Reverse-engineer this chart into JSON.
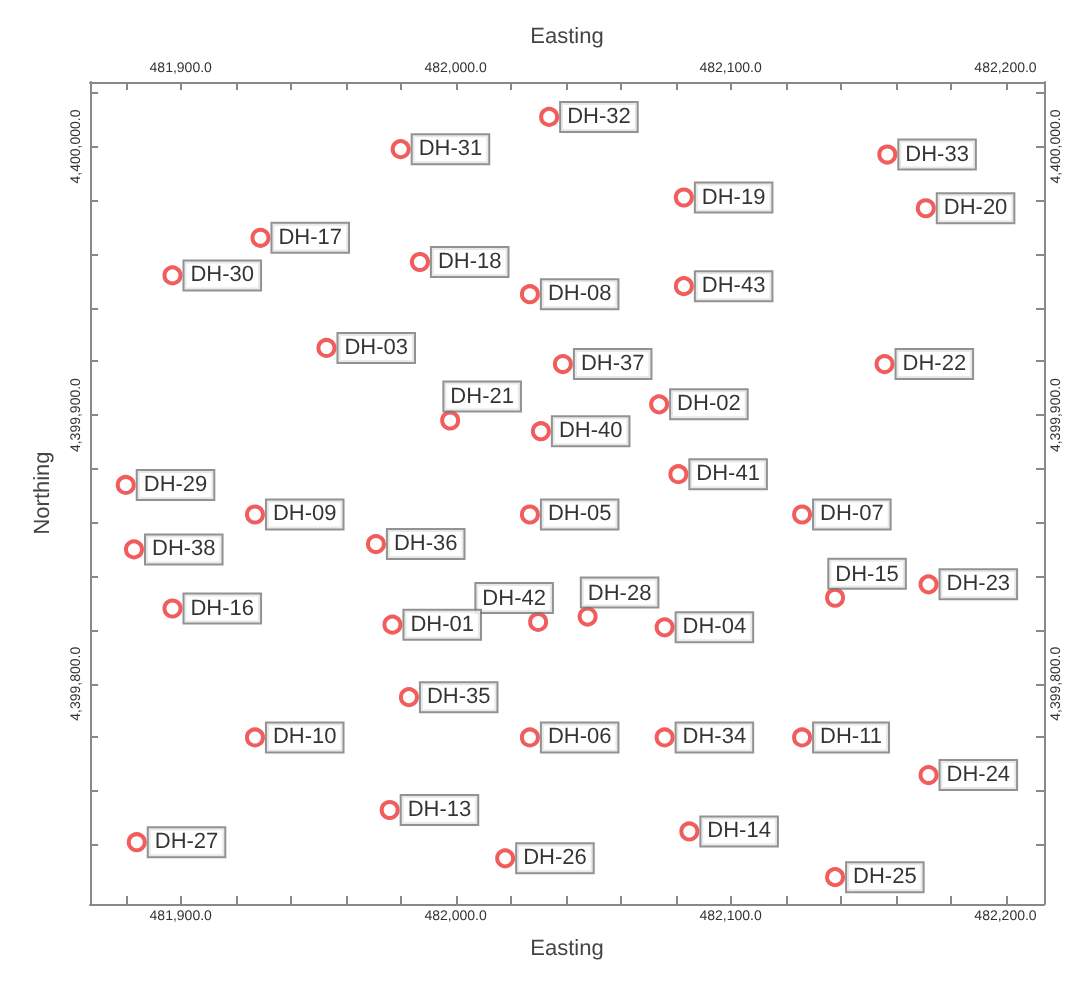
{
  "chart_data": {
    "type": "scatter",
    "xlabel": "Easting",
    "x2label": "Easting",
    "ylabel": "Northing",
    "marker": "circle",
    "x": [
      482034,
      481980,
      482157,
      482083,
      482171,
      481929,
      481897,
      481987,
      482027,
      482083,
      481953,
      482039,
      482156,
      481998,
      482031,
      482074,
      482081,
      481880,
      481927,
      482027,
      482126,
      481883,
      481971,
      482138,
      482172,
      482030,
      482048,
      482076,
      481897,
      481977,
      481983,
      481927,
      482027,
      482076,
      482126,
      482172,
      481976,
      482085,
      481884,
      482018,
      482138
    ],
    "values": [
      4400011,
      4399999,
      4399997,
      4399981,
      4399977,
      4399966,
      4399952,
      4399957,
      4399945,
      4399948,
      4399925,
      4399919,
      4399919,
      4399898,
      4399894,
      4399904,
      4399878,
      4399874,
      4399863,
      4399863,
      4399863,
      4399850,
      4399852,
      4399832,
      4399837,
      4399823,
      4399825,
      4399821,
      4399828,
      4399822,
      4399795,
      4399780,
      4399780,
      4399780,
      4399780,
      4399766,
      4399753,
      4399745,
      4399741,
      4399735,
      4399728
    ],
    "color": "#ee3333",
    "annotations": [
      {
        "text": "DH-32",
        "x": 482034,
        "y": 4400011
      },
      {
        "text": "DH-31",
        "x": 481980,
        "y": 4399999
      },
      {
        "text": "DH-33",
        "x": 482157,
        "y": 4399997
      },
      {
        "text": "DH-19",
        "x": 482083,
        "y": 4399981
      },
      {
        "text": "DH-20",
        "x": 482171,
        "y": 4399977
      },
      {
        "text": "DH-17",
        "x": 481929,
        "y": 4399966
      },
      {
        "text": "DH-30",
        "x": 481897,
        "y": 4399952
      },
      {
        "text": "DH-18",
        "x": 481987,
        "y": 4399957
      },
      {
        "text": "DH-08",
        "x": 482027,
        "y": 4399945
      },
      {
        "text": "DH-43",
        "x": 482083,
        "y": 4399948
      },
      {
        "text": "DH-03",
        "x": 481953,
        "y": 4399925
      },
      {
        "text": "DH-37",
        "x": 482039,
        "y": 4399919
      },
      {
        "text": "DH-22",
        "x": 482156,
        "y": 4399919
      },
      {
        "text": "DH-21",
        "x": 481998,
        "y": 4399898
      },
      {
        "text": "DH-40",
        "x": 482031,
        "y": 4399894
      },
      {
        "text": "DH-02",
        "x": 482074,
        "y": 4399904
      },
      {
        "text": "DH-41",
        "x": 482081,
        "y": 4399878
      },
      {
        "text": "DH-29",
        "x": 481880,
        "y": 4399874
      },
      {
        "text": "DH-09",
        "x": 481927,
        "y": 4399863
      },
      {
        "text": "DH-05",
        "x": 482027,
        "y": 4399863
      },
      {
        "text": "DH-07",
        "x": 482126,
        "y": 4399863
      },
      {
        "text": "DH-38",
        "x": 481883,
        "y": 4399850
      },
      {
        "text": "DH-36",
        "x": 481971,
        "y": 4399852
      },
      {
        "text": "DH-15",
        "x": 482138,
        "y": 4399832
      },
      {
        "text": "DH-23",
        "x": 482172,
        "y": 4399837
      },
      {
        "text": "DH-42",
        "x": 482030,
        "y": 4399823
      },
      {
        "text": "DH-28",
        "x": 482048,
        "y": 4399825
      },
      {
        "text": "DH-04",
        "x": 482076,
        "y": 4399821
      },
      {
        "text": "DH-16",
        "x": 481897,
        "y": 4399828
      },
      {
        "text": "DH-01",
        "x": 481977,
        "y": 4399822
      },
      {
        "text": "DH-35",
        "x": 481983,
        "y": 4399795
      },
      {
        "text": "DH-10",
        "x": 481927,
        "y": 4399780
      },
      {
        "text": "DH-06",
        "x": 482027,
        "y": 4399780
      },
      {
        "text": "DH-34",
        "x": 482076,
        "y": 4399780
      },
      {
        "text": "DH-11",
        "x": 482126,
        "y": 4399780
      },
      {
        "text": "DH-24",
        "x": 482172,
        "y": 4399766
      },
      {
        "text": "DH-13",
        "x": 481976,
        "y": 4399753
      },
      {
        "text": "DH-14",
        "x": 482085,
        "y": 4399745
      },
      {
        "text": "DH-27",
        "x": 481884,
        "y": 4399741
      },
      {
        "text": "DH-26",
        "x": 482018,
        "y": 4399735
      },
      {
        "text": "DH-25",
        "x": 482138,
        "y": 4399728
      }
    ],
    "xlim": [
      481867,
      482214
    ],
    "x2lim": [
      481867,
      482214
    ],
    "ylim": [
      4399718,
      4400024
    ],
    "y2lim": [
      4399718,
      4400024
    ],
    "xticks": [
      {
        "value": 481880,
        "label": null
      },
      {
        "value": 481900,
        "label": "481,900.0"
      },
      {
        "value": 481920,
        "label": null
      },
      {
        "value": 481940,
        "label": null
      },
      {
        "value": 481960,
        "label": null
      },
      {
        "value": 481980,
        "label": null
      },
      {
        "value": 482000,
        "label": "482,000.0"
      },
      {
        "value": 482020,
        "label": null
      },
      {
        "value": 482040,
        "label": null
      },
      {
        "value": 482060,
        "label": null
      },
      {
        "value": 482080,
        "label": null
      },
      {
        "value": 482100,
        "label": "482,100.0"
      },
      {
        "value": 482120,
        "label": null
      },
      {
        "value": 482140,
        "label": null
      },
      {
        "value": 482160,
        "label": null
      },
      {
        "value": 482180,
        "label": null
      },
      {
        "value": 482200,
        "label": "482,200.0"
      }
    ],
    "x2ticks": [
      {
        "value": 481880,
        "label": null
      },
      {
        "value": 481900,
        "label": "481,900.0"
      },
      {
        "value": 481920,
        "label": null
      },
      {
        "value": 481940,
        "label": null
      },
      {
        "value": 481960,
        "label": null
      },
      {
        "value": 481980,
        "label": null
      },
      {
        "value": 482000,
        "label": "482,000.0"
      },
      {
        "value": 482020,
        "label": null
      },
      {
        "value": 482040,
        "label": null
      },
      {
        "value": 482060,
        "label": null
      },
      {
        "value": 482080,
        "label": null
      },
      {
        "value": 482100,
        "label": "482,100.0"
      },
      {
        "value": 482120,
        "label": null
      },
      {
        "value": 482140,
        "label": null
      },
      {
        "value": 482160,
        "label": null
      },
      {
        "value": 482180,
        "label": null
      },
      {
        "value": 482200,
        "label": "482,200.0"
      }
    ],
    "yticks": [
      {
        "value": 4399740,
        "label": null
      },
      {
        "value": 4399760,
        "label": null
      },
      {
        "value": 4399780,
        "label": null
      },
      {
        "value": 4399800,
        "label": "4,399,800.0"
      },
      {
        "value": 4399820,
        "label": null
      },
      {
        "value": 4399840,
        "label": null
      },
      {
        "value": 4399860,
        "label": null
      },
      {
        "value": 4399880,
        "label": null
      },
      {
        "value": 4399900,
        "label": "4,399,900.0"
      },
      {
        "value": 4399920,
        "label": null
      },
      {
        "value": 4399940,
        "label": null
      },
      {
        "value": 4399960,
        "label": null
      },
      {
        "value": 4399980,
        "label": null
      },
      {
        "value": 4400000,
        "label": "4,400,000.0"
      },
      {
        "value": 4400020,
        "label": null
      }
    ],
    "y2ticks": [
      {
        "value": 4399740,
        "label": null
      },
      {
        "value": 4399760,
        "label": null
      },
      {
        "value": 4399780,
        "label": null
      },
      {
        "value": 4399800,
        "label": "4,399,800.0"
      },
      {
        "value": 4399820,
        "label": null
      },
      {
        "value": 4399840,
        "label": null
      },
      {
        "value": 4399860,
        "label": null
      },
      {
        "value": 4399880,
        "label": null
      },
      {
        "value": 4399900,
        "label": "4,399,900.0"
      },
      {
        "value": 4399920,
        "label": null
      },
      {
        "value": 4399940,
        "label": null
      },
      {
        "value": 4399960,
        "label": null
      },
      {
        "value": 4399980,
        "label": null
      },
      {
        "value": 4400000,
        "label": "4,400,000.0"
      },
      {
        "value": 4400020,
        "label": null
      }
    ]
  }
}
